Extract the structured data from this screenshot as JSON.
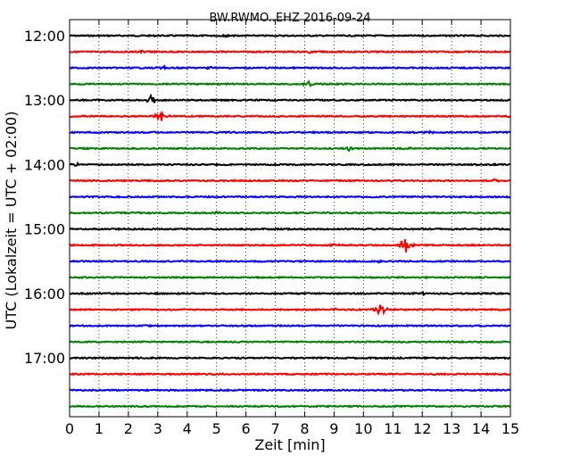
{
  "chart_data": {
    "type": "line",
    "title": "BW.RWMO..EHZ 2016-09-24",
    "xlabel": "Zeit  [min]",
    "ylabel": "UTC (Lokalzeit = UTC + 02:00)",
    "xlim": [
      0,
      15
    ],
    "x_ticks": [
      "0",
      "1",
      "2",
      "3",
      "4",
      "5",
      "6",
      "7",
      "8",
      "9",
      "10",
      "11",
      "12",
      "13",
      "14",
      "15"
    ],
    "y_tick_labels": [
      "12:00",
      "13:00",
      "14:00",
      "15:00",
      "16:00",
      "17:00"
    ],
    "grid": {
      "x": true,
      "style": "dotted"
    },
    "trace_colors": [
      "#000000",
      "#ff0000",
      "#0000ff",
      "#008000"
    ],
    "series": [
      {
        "start": "12:00",
        "events": [
          {
            "x": 5.3,
            "amp": 0.15
          }
        ]
      },
      {
        "start": "12:15",
        "events": [
          {
            "x": 2.5,
            "amp": 0.15
          },
          {
            "x": 8.2,
            "amp": 0.15
          }
        ]
      },
      {
        "start": "12:30",
        "events": [
          {
            "x": 3.2,
            "amp": 0.2
          },
          {
            "x": 4.8,
            "amp": 0.15
          }
        ]
      },
      {
        "start": "12:45",
        "events": [
          {
            "x": 8.1,
            "amp": 0.35
          }
        ]
      },
      {
        "start": "13:00",
        "events": [
          {
            "x": 2.8,
            "amp": 0.6
          }
        ]
      },
      {
        "start": "13:15",
        "events": [
          {
            "x": 3.1,
            "amp": 0.6
          }
        ]
      },
      {
        "start": "13:30",
        "events": [
          {
            "x": 12.3,
            "amp": 0.15
          }
        ]
      },
      {
        "start": "13:45",
        "events": [
          {
            "x": 9.5,
            "amp": 0.2
          },
          {
            "x": 11.5,
            "amp": 0.15
          }
        ]
      },
      {
        "start": "14:00",
        "events": [
          {
            "x": 0.2,
            "amp": 0.2
          }
        ]
      },
      {
        "start": "14:15",
        "events": [
          {
            "x": 14.5,
            "amp": 0.2
          }
        ]
      },
      {
        "start": "14:30",
        "events": []
      },
      {
        "start": "14:45",
        "events": [
          {
            "x": 5.0,
            "amp": 0.15
          }
        ]
      },
      {
        "start": "15:00",
        "events": [
          {
            "x": 6.2,
            "amp": 0.1
          }
        ]
      },
      {
        "start": "15:15",
        "events": [
          {
            "x": 9.0,
            "amp": 0.2
          },
          {
            "x": 11.4,
            "amp": 1.1
          }
        ]
      },
      {
        "start": "15:30",
        "events": [
          {
            "x": 10.5,
            "amp": 0.15
          }
        ]
      },
      {
        "start": "15:45",
        "events": []
      },
      {
        "start": "16:00",
        "events": [
          {
            "x": 12.0,
            "amp": 0.15
          }
        ]
      },
      {
        "start": "16:15",
        "events": [
          {
            "x": 9.0,
            "amp": 0.15
          },
          {
            "x": 10.6,
            "amp": 0.9
          }
        ]
      },
      {
        "start": "16:30",
        "events": []
      },
      {
        "start": "16:45",
        "events": []
      },
      {
        "start": "17:00",
        "events": []
      },
      {
        "start": "17:15",
        "events": []
      },
      {
        "start": "17:30",
        "events": []
      },
      {
        "start": "17:45",
        "events": []
      }
    ]
  }
}
